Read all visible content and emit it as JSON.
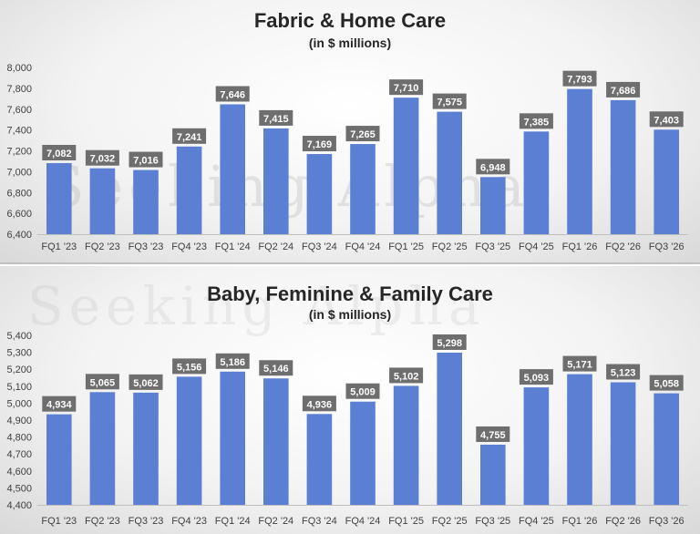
{
  "chart_data": [
    {
      "type": "bar",
      "title": "Fabric & Home Care",
      "subtitle": "(in $ millions)",
      "categories": [
        "FQ1 '23",
        "FQ2 '23",
        "FQ3 '23",
        "FQ4 '23",
        "FQ1 '24",
        "FQ2 '24",
        "FQ3 '24",
        "FQ4 '24",
        "FQ1 '25",
        "FQ2 '25",
        "FQ3 '25",
        "FQ4 '25",
        "FQ1 '26",
        "FQ2 '26",
        "FQ3 '26"
      ],
      "values": [
        7082,
        7032,
        7016,
        7241,
        7646,
        7415,
        7169,
        7265,
        7710,
        7575,
        6948,
        7385,
        7793,
        7686,
        7403
      ],
      "data_labels": [
        "7,082",
        "7,032",
        "7,016",
        "7,241",
        "7,646",
        "7,415",
        "7,169",
        "7,265",
        "7,710",
        "7,575",
        "6,948",
        "7,385",
        "7,793",
        "7,686",
        "7,403"
      ],
      "y_ticks": [
        "8,000",
        "7,800",
        "7,600",
        "7,400",
        "7,200",
        "7,000",
        "6,800",
        "6,600",
        "6,400"
      ],
      "ylim": [
        6400,
        8000
      ],
      "bar_color": "#5b7fd3",
      "label_bg_color": "#6e6e6e",
      "grid": false,
      "legend": "none"
    },
    {
      "type": "bar",
      "title": "Baby, Feminine & Family Care",
      "subtitle": "(in $ millions)",
      "categories": [
        "FQ1 '23",
        "FQ2 '23",
        "FQ3 '23",
        "FQ4 '23",
        "FQ1 '24",
        "FQ2 '24",
        "FQ3 '24",
        "FQ4 '24",
        "FQ1 '25",
        "FQ2 '25",
        "FQ3 '25",
        "FQ4 '25",
        "FQ1 '26",
        "FQ2 '26",
        "FQ3 '26"
      ],
      "values": [
        4934,
        5065,
        5062,
        5156,
        5186,
        5146,
        4936,
        5009,
        5102,
        5298,
        4755,
        5093,
        5171,
        5123,
        5058
      ],
      "data_labels": [
        "4,934",
        "5,065",
        "5,062",
        "5,156",
        "5,186",
        "5,146",
        "4,936",
        "5,009",
        "5,102",
        "5,298",
        "4,755",
        "5,093",
        "5,171",
        "5,123",
        "5,058"
      ],
      "y_ticks": [
        "5,400",
        "5,300",
        "5,200",
        "5,100",
        "5,000",
        "4,900",
        "4,800",
        "4,700",
        "4,600",
        "4,500",
        "4,400"
      ],
      "ylim": [
        4400,
        5400
      ],
      "bar_color": "#5b7fd3",
      "label_bg_color": "#6e6e6e",
      "grid": false,
      "legend": "none"
    }
  ],
  "watermark": "Seeking Alpha"
}
